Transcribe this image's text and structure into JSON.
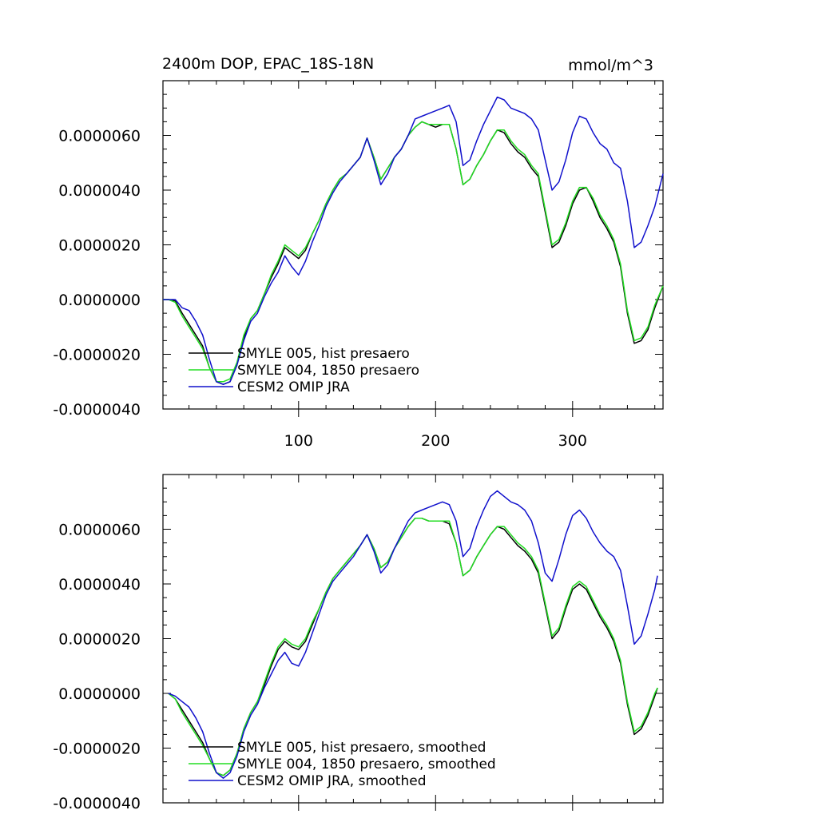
{
  "chart_data": [
    {
      "type": "line",
      "title": "2400m DOP, EPAC_18S-18N",
      "units": "mmol/m^3",
      "xlim": [
        1,
        366
      ],
      "ylim": [
        -4e-06,
        8e-06
      ],
      "xticks": [
        100,
        200,
        300
      ],
      "xtick_labels": [
        "100",
        "200",
        "300"
      ],
      "yticks": [
        -4e-06,
        -2e-06,
        0.0,
        2e-06,
        4e-06,
        6e-06
      ],
      "ytick_labels": [
        "-0.0000040",
        "-0.0000020",
        "0.0000000",
        "0.0000020",
        "0.0000040",
        "0.0000060"
      ],
      "series": [
        {
          "name": "SMYLE 005, hist presaero",
          "color": "#000000",
          "x": [
            1,
            5,
            10,
            15,
            20,
            25,
            30,
            35,
            40,
            45,
            50,
            55,
            60,
            65,
            70,
            75,
            80,
            85,
            90,
            95,
            100,
            105,
            110,
            115,
            120,
            125,
            130,
            135,
            140,
            145,
            150,
            155,
            160,
            165,
            170,
            175,
            180,
            185,
            190,
            195,
            200,
            205,
            210,
            215,
            220,
            225,
            230,
            235,
            240,
            245,
            250,
            255,
            260,
            265,
            270,
            275,
            280,
            285,
            290,
            295,
            300,
            305,
            310,
            315,
            320,
            325,
            330,
            335,
            340,
            345,
            350,
            355,
            360,
            366
          ],
          "values": [
            0.0,
            0.0,
            -5e-08,
            -5e-07,
            -9e-07,
            -1.3e-06,
            -1.7e-06,
            -2.5e-06,
            -3e-06,
            -3.1e-06,
            -3e-06,
            -2.4e-06,
            -1.4e-06,
            -7e-07,
            -4e-07,
            2e-07,
            8e-07,
            1.3e-06,
            1.9e-06,
            1.7e-06,
            1.5e-06,
            1.8e-06,
            2.4e-06,
            2.9e-06,
            3.5e-06,
            4e-06,
            4.4e-06,
            4.6e-06,
            4.9e-06,
            5.2e-06,
            5.9e-06,
            5.2e-06,
            4.4e-06,
            4.8e-06,
            5.2e-06,
            5.5e-06,
            6e-06,
            6.3e-06,
            6.5e-06,
            6.4e-06,
            6.3e-06,
            6.4e-06,
            6.4e-06,
            5.5e-06,
            4.2e-06,
            4.4e-06,
            4.9e-06,
            5.3e-06,
            5.8e-06,
            6.2e-06,
            6.1e-06,
            5.7e-06,
            5.4e-06,
            5.2e-06,
            4.8e-06,
            4.5e-06,
            3.2e-06,
            1.9e-06,
            2.1e-06,
            2.7e-06,
            3.5e-06,
            4e-06,
            4.1e-06,
            3.6e-06,
            3e-06,
            2.6e-06,
            2.1e-06,
            1.2e-06,
            -5e-07,
            -1.6e-06,
            -1.5e-06,
            -1.1e-06,
            -3e-07,
            5e-07
          ]
        },
        {
          "name": "SMYLE 004, 1850 presaero",
          "color": "#22dd22",
          "x": [
            1,
            5,
            10,
            15,
            20,
            25,
            30,
            35,
            40,
            45,
            50,
            55,
            60,
            65,
            70,
            75,
            80,
            85,
            90,
            95,
            100,
            105,
            110,
            115,
            120,
            125,
            130,
            135,
            140,
            145,
            150,
            155,
            160,
            165,
            170,
            175,
            180,
            185,
            190,
            195,
            200,
            205,
            210,
            215,
            220,
            225,
            230,
            235,
            240,
            245,
            250,
            255,
            260,
            265,
            270,
            275,
            280,
            285,
            290,
            295,
            300,
            305,
            310,
            315,
            320,
            325,
            330,
            335,
            340,
            345,
            350,
            355,
            360,
            366
          ],
          "values": [
            0.0,
            0.0,
            -1e-07,
            -6e-07,
            -1e-06,
            -1.4e-06,
            -1.8e-06,
            -2.5e-06,
            -3e-06,
            -3e-06,
            -2.9e-06,
            -2.3e-06,
            -1.3e-06,
            -7e-07,
            -4e-07,
            2e-07,
            9e-07,
            1.4e-06,
            2e-06,
            1.8e-06,
            1.6e-06,
            1.9e-06,
            2.4e-06,
            2.9e-06,
            3.5e-06,
            4e-06,
            4.4e-06,
            4.6e-06,
            4.9e-06,
            5.2e-06,
            5.9e-06,
            5.2e-06,
            4.4e-06,
            4.8e-06,
            5.2e-06,
            5.5e-06,
            6e-06,
            6.3e-06,
            6.5e-06,
            6.4e-06,
            6.4e-06,
            6.4e-06,
            6.4e-06,
            5.5e-06,
            4.2e-06,
            4.4e-06,
            4.9e-06,
            5.3e-06,
            5.8e-06,
            6.2e-06,
            6.2e-06,
            5.8e-06,
            5.5e-06,
            5.3e-06,
            4.9e-06,
            4.6e-06,
            3.3e-06,
            2e-06,
            2.2e-06,
            2.8e-06,
            3.6e-06,
            4.1e-06,
            4.1e-06,
            3.7e-06,
            3.1e-06,
            2.7e-06,
            2.2e-06,
            1.3e-06,
            -4e-07,
            -1.5e-06,
            -1.4e-06,
            -1e-06,
            -2e-07,
            5e-07
          ]
        },
        {
          "name": "CESM2 OMIP JRA",
          "color": "#1010cc",
          "x": [
            1,
            5,
            10,
            15,
            20,
            25,
            30,
            35,
            40,
            45,
            50,
            55,
            60,
            65,
            70,
            75,
            80,
            85,
            90,
            95,
            100,
            105,
            110,
            115,
            120,
            125,
            130,
            135,
            140,
            145,
            150,
            155,
            160,
            165,
            170,
            175,
            180,
            185,
            190,
            195,
            200,
            205,
            210,
            215,
            220,
            225,
            230,
            235,
            240,
            245,
            250,
            255,
            260,
            265,
            270,
            275,
            280,
            285,
            290,
            295,
            300,
            305,
            310,
            315,
            320,
            325,
            330,
            335,
            340,
            345,
            350,
            355,
            360,
            366
          ],
          "values": [
            0.0,
            0.0,
            0.0,
            -3e-07,
            -4e-07,
            -8e-07,
            -1.3e-06,
            -2.2e-06,
            -3e-06,
            -3.1e-06,
            -3e-06,
            -2.4e-06,
            -1.5e-06,
            -8e-07,
            -5e-07,
            1e-07,
            6e-07,
            1e-06,
            1.6e-06,
            1.2e-06,
            9e-07,
            1.4e-06,
            2.1e-06,
            2.7e-06,
            3.4e-06,
            3.9e-06,
            4.3e-06,
            4.6e-06,
            4.9e-06,
            5.2e-06,
            5.9e-06,
            5.1e-06,
            4.2e-06,
            4.6e-06,
            5.2e-06,
            5.5e-06,
            6e-06,
            6.6e-06,
            6.7e-06,
            6.8e-06,
            6.9e-06,
            7e-06,
            7.1e-06,
            6.5e-06,
            4.9e-06,
            5.1e-06,
            5.8e-06,
            6.4e-06,
            6.9e-06,
            7.4e-06,
            7.3e-06,
            7e-06,
            6.9e-06,
            6.8e-06,
            6.6e-06,
            6.2e-06,
            5.1e-06,
            4e-06,
            4.3e-06,
            5.1e-06,
            6.1e-06,
            6.7e-06,
            6.6e-06,
            6.1e-06,
            5.7e-06,
            5.5e-06,
            5e-06,
            4.8e-06,
            3.6e-06,
            1.9e-06,
            2.1e-06,
            2.7e-06,
            3.4e-06,
            4.6e-06
          ]
        }
      ]
    },
    {
      "type": "line",
      "xlim": [
        1,
        366
      ],
      "ylim": [
        -4e-06,
        8e-06
      ],
      "xticks": [
        100,
        200,
        300
      ],
      "yticks": [
        -4e-06,
        -2e-06,
        0.0,
        2e-06,
        4e-06,
        6e-06
      ],
      "ytick_labels": [
        "-0.0000040",
        "-0.0000020",
        "0.0000000",
        "0.0000020",
        "0.0000040",
        "0.0000060"
      ],
      "series": [
        {
          "name": "SMYLE 005, hist presaero, smoothed",
          "color": "#000000",
          "x": [
            5,
            10,
            15,
            20,
            25,
            30,
            35,
            40,
            45,
            50,
            55,
            60,
            65,
            70,
            75,
            80,
            85,
            90,
            95,
            100,
            105,
            110,
            115,
            120,
            125,
            130,
            135,
            140,
            145,
            150,
            155,
            160,
            165,
            170,
            175,
            180,
            185,
            190,
            195,
            200,
            205,
            210,
            215,
            220,
            225,
            230,
            235,
            240,
            245,
            250,
            255,
            260,
            265,
            270,
            275,
            280,
            285,
            290,
            295,
            300,
            305,
            310,
            315,
            320,
            325,
            330,
            335,
            340,
            345,
            350,
            355,
            360,
            362
          ],
          "values": [
            0.0,
            -2e-07,
            -6e-07,
            -1e-06,
            -1.4e-06,
            -1.8e-06,
            -2.4e-06,
            -2.9e-06,
            -3e-06,
            -2.8e-06,
            -2.2e-06,
            -1.3e-06,
            -7e-07,
            -3e-07,
            3e-07,
            1e-06,
            1.6e-06,
            1.9e-06,
            1.7e-06,
            1.6e-06,
            1.9e-06,
            2.5e-06,
            3.1e-06,
            3.7e-06,
            4.2e-06,
            4.5e-06,
            4.8e-06,
            5.1e-06,
            5.4e-06,
            5.8e-06,
            5.3e-06,
            4.6e-06,
            4.8e-06,
            5.3e-06,
            5.7e-06,
            6.1e-06,
            6.4e-06,
            6.4e-06,
            6.3e-06,
            6.3e-06,
            6.3e-06,
            6.2e-06,
            5.5e-06,
            4.3e-06,
            4.5e-06,
            5e-06,
            5.4e-06,
            5.8e-06,
            6.1e-06,
            6e-06,
            5.7e-06,
            5.4e-06,
            5.2e-06,
            4.9e-06,
            4.4e-06,
            3.2e-06,
            2e-06,
            2.3e-06,
            3.1e-06,
            3.8e-06,
            4e-06,
            3.8e-06,
            3.3e-06,
            2.8e-06,
            2.4e-06,
            1.9e-06,
            1.1e-06,
            -4e-07,
            -1.5e-06,
            -1.3e-06,
            -8e-07,
            -1e-07,
            2e-07
          ]
        },
        {
          "name": "SMYLE 004, 1850 presaero, smoothed",
          "color": "#22dd22",
          "x": [
            5,
            10,
            15,
            20,
            25,
            30,
            35,
            40,
            45,
            50,
            55,
            60,
            65,
            70,
            75,
            80,
            85,
            90,
            95,
            100,
            105,
            110,
            115,
            120,
            125,
            130,
            135,
            140,
            145,
            150,
            155,
            160,
            165,
            170,
            175,
            180,
            185,
            190,
            195,
            200,
            205,
            210,
            215,
            220,
            225,
            230,
            235,
            240,
            245,
            250,
            255,
            260,
            265,
            270,
            275,
            280,
            285,
            290,
            295,
            300,
            305,
            310,
            315,
            320,
            325,
            330,
            335,
            340,
            345,
            350,
            355,
            360,
            362
          ],
          "values": [
            0.0,
            -2e-07,
            -7e-07,
            -1.1e-06,
            -1.5e-06,
            -1.9e-06,
            -2.4e-06,
            -2.9e-06,
            -3e-06,
            -2.8e-06,
            -2.2e-06,
            -1.3e-06,
            -7e-07,
            -3e-07,
            4e-07,
            1.1e-06,
            1.7e-06,
            2e-06,
            1.8e-06,
            1.7e-06,
            2e-06,
            2.6e-06,
            3.1e-06,
            3.7e-06,
            4.2e-06,
            4.5e-06,
            4.8e-06,
            5.1e-06,
            5.4e-06,
            5.8e-06,
            5.3e-06,
            4.6e-06,
            4.8e-06,
            5.3e-06,
            5.7e-06,
            6.1e-06,
            6.4e-06,
            6.4e-06,
            6.3e-06,
            6.3e-06,
            6.3e-06,
            6.3e-06,
            5.5e-06,
            4.3e-06,
            4.5e-06,
            5e-06,
            5.4e-06,
            5.8e-06,
            6.1e-06,
            6.1e-06,
            5.8e-06,
            5.5e-06,
            5.3e-06,
            5e-06,
            4.5e-06,
            3.3e-06,
            2.1e-06,
            2.4e-06,
            3.2e-06,
            3.9e-06,
            4.1e-06,
            3.9e-06,
            3.4e-06,
            2.9e-06,
            2.5e-06,
            2e-06,
            1.2e-06,
            -3e-07,
            -1.4e-06,
            -1.2e-06,
            -7e-07,
            0.0,
            2e-07
          ]
        },
        {
          "name": "CESM2 OMIP JRA, smoothed",
          "color": "#1010cc",
          "x": [
            5,
            10,
            15,
            20,
            25,
            30,
            35,
            40,
            45,
            50,
            55,
            60,
            65,
            70,
            75,
            80,
            85,
            90,
            95,
            100,
            105,
            110,
            115,
            120,
            125,
            130,
            135,
            140,
            145,
            150,
            155,
            160,
            165,
            170,
            175,
            180,
            185,
            190,
            195,
            200,
            205,
            210,
            215,
            220,
            225,
            230,
            235,
            240,
            245,
            250,
            255,
            260,
            265,
            270,
            275,
            280,
            285,
            290,
            295,
            300,
            305,
            310,
            315,
            320,
            325,
            330,
            335,
            340,
            345,
            350,
            355,
            360,
            362
          ],
          "values": [
            0.0,
            -1e-07,
            -3e-07,
            -5e-07,
            -9e-07,
            -1.4e-06,
            -2.2e-06,
            -2.9e-06,
            -3.1e-06,
            -2.9e-06,
            -2.3e-06,
            -1.4e-06,
            -8e-07,
            -4e-07,
            2e-07,
            7e-07,
            1.2e-06,
            1.5e-06,
            1.1e-06,
            1e-06,
            1.5e-06,
            2.2e-06,
            2.9e-06,
            3.6e-06,
            4.1e-06,
            4.4e-06,
            4.7e-06,
            5e-06,
            5.4e-06,
            5.8e-06,
            5.2e-06,
            4.4e-06,
            4.7e-06,
            5.3e-06,
            5.8e-06,
            6.3e-06,
            6.6e-06,
            6.7e-06,
            6.8e-06,
            6.9e-06,
            7e-06,
            6.9e-06,
            6.3e-06,
            5e-06,
            5.3e-06,
            6.1e-06,
            6.7e-06,
            7.2e-06,
            7.4e-06,
            7.2e-06,
            7e-06,
            6.9e-06,
            6.7e-06,
            6.3e-06,
            5.5e-06,
            4.4e-06,
            4.1e-06,
            4.9e-06,
            5.8e-06,
            6.5e-06,
            6.7e-06,
            6.4e-06,
            5.9e-06,
            5.5e-06,
            5.2e-06,
            5e-06,
            4.5e-06,
            3.2e-06,
            1.8e-06,
            2.1e-06,
            2.9e-06,
            3.8e-06,
            4.3e-06
          ]
        }
      ]
    }
  ]
}
